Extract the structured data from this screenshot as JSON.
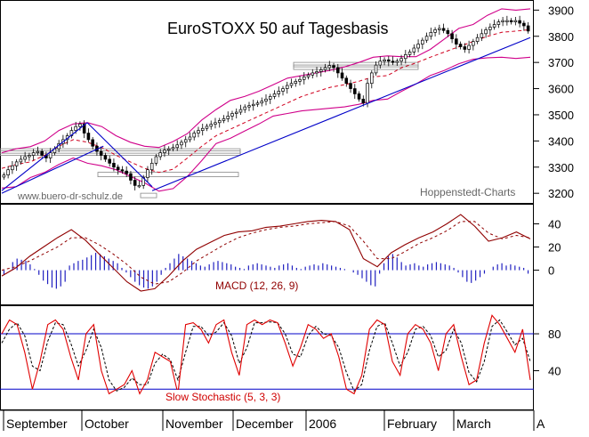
{
  "chart_data": [
    {
      "type": "candlestick",
      "title": "EuroSTOXX 50 auf Tagesbasis",
      "watermark_left": "www.buero-dr-schulz.de",
      "watermark_right": "Hoppenstedt-Charts",
      "y_ticks": [
        "3900",
        "3800",
        "3700",
        "3600",
        "3500",
        "3400",
        "3300",
        "3200"
      ],
      "ylim": [
        3170,
        3925
      ],
      "x_range": [
        0,
        130
      ],
      "closes": [
        3270,
        3290,
        3305,
        3320,
        3330,
        3340,
        3345,
        3355,
        3360,
        3345,
        3335,
        3355,
        3370,
        3390,
        3405,
        3420,
        3440,
        3455,
        3465,
        3430,
        3405,
        3380,
        3360,
        3345,
        3330,
        3315,
        3300,
        3290,
        3285,
        3275,
        3250,
        3230,
        3230,
        3260,
        3290,
        3315,
        3340,
        3355,
        3365,
        3370,
        3375,
        3385,
        3395,
        3405,
        3415,
        3430,
        3440,
        3448,
        3456,
        3464,
        3470,
        3478,
        3485,
        3495,
        3505,
        3510,
        3520,
        3530,
        3535,
        3540,
        3545,
        3552,
        3560,
        3570,
        3580,
        3590,
        3600,
        3612,
        3620,
        3628,
        3635,
        3645,
        3652,
        3660,
        3665,
        3672,
        3680,
        3688,
        3680,
        3660,
        3640,
        3620,
        3600,
        3580,
        3560,
        3545,
        3620,
        3660,
        3690,
        3705,
        3710,
        3705,
        3700,
        3705,
        3715,
        3730,
        3740,
        3755,
        3770,
        3785,
        3800,
        3815,
        3825,
        3830,
        3822,
        3810,
        3790,
        3770,
        3760,
        3750,
        3765,
        3780,
        3795,
        3810,
        3825,
        3835,
        3845,
        3855,
        3860,
        3860,
        3855,
        3860,
        3850,
        3840,
        3820
      ],
      "upper_bollinger": [
        3355,
        3370,
        3378,
        3400,
        3440,
        3465,
        3470,
        3455,
        3420,
        3395,
        3380,
        3375,
        3398,
        3428,
        3480,
        3520,
        3555,
        3570,
        3590,
        3615,
        3640,
        3650,
        3660,
        3670,
        3683,
        3700,
        3720,
        3725,
        3722,
        3722,
        3750,
        3790,
        3830,
        3845,
        3880,
        3905,
        3900,
        3905
      ],
      "lower_bollinger": [
        3220,
        3225,
        3260,
        3280,
        3310,
        3335,
        3315,
        3305,
        3290,
        3265,
        3240,
        3208,
        3218,
        3265,
        3325,
        3390,
        3410,
        3438,
        3465,
        3495,
        3505,
        3515,
        3520,
        3525,
        3530,
        3540,
        3555,
        3560,
        3590,
        3618,
        3650,
        3670,
        3695,
        3712,
        3718,
        3720,
        3715,
        3720
      ],
      "moving_average": [
        3295,
        3310,
        3320,
        3345,
        3380,
        3405,
        3395,
        3375,
        3345,
        3320,
        3295,
        3280,
        3292,
        3335,
        3380,
        3420,
        3445,
        3470,
        3495,
        3520,
        3545,
        3570,
        3588,
        3605,
        3615,
        3628,
        3645,
        3650,
        3680,
        3698,
        3720,
        3740,
        3760,
        3780,
        3800,
        3815,
        3820,
        3825
      ]
    },
    {
      "type": "line",
      "title": "MACD (12, 26, 9)",
      "y_ticks": [
        "40",
        "20",
        "0"
      ],
      "ylim": [
        -28,
        55
      ],
      "macd": [
        -5,
        2,
        12,
        20,
        28,
        35,
        26,
        14,
        2,
        -10,
        -18,
        -16,
        -5,
        8,
        18,
        24,
        30,
        33,
        34,
        37,
        38,
        40,
        42,
        43,
        42,
        35,
        10,
        3,
        15,
        22,
        28,
        33,
        40,
        48,
        38,
        25,
        28,
        33,
        27
      ],
      "signal": [
        0,
        3,
        8,
        14,
        20,
        28,
        28,
        22,
        14,
        5,
        -6,
        -12,
        -10,
        -2,
        8,
        15,
        22,
        28,
        32,
        35,
        37,
        38,
        40,
        41,
        42,
        38,
        25,
        10,
        10,
        16,
        23,
        28,
        34,
        42,
        42,
        32,
        27,
        30,
        28
      ],
      "histogram": [
        -4,
        0,
        7,
        10,
        9,
        8,
        5,
        1,
        -4,
        -9,
        -12,
        -15,
        -16,
        -14,
        -10,
        4,
        6,
        8,
        9,
        11,
        13,
        15,
        14,
        12,
        10,
        8,
        6,
        2,
        -2,
        -6,
        -10,
        -13,
        -15,
        -16,
        -14,
        -10,
        -4,
        2,
        6,
        10,
        14,
        12,
        10,
        8,
        6,
        4,
        3,
        5,
        7,
        8,
        7,
        6,
        5,
        3,
        2,
        1,
        4,
        5,
        6,
        5,
        4,
        3,
        2,
        4,
        5,
        6,
        4,
        2,
        1,
        3,
        4,
        5,
        4,
        6,
        5,
        4,
        3,
        2,
        1,
        0,
        -2,
        -4,
        -7,
        -10,
        -13,
        -14,
        -3,
        6,
        12,
        14,
        11,
        7,
        4,
        5,
        6,
        4,
        3,
        5,
        6,
        7,
        6,
        5,
        4,
        2,
        -2,
        -6,
        -10,
        -11,
        -9,
        -6,
        -3,
        0,
        3,
        5,
        6,
        4,
        5,
        4,
        3,
        2,
        -3
      ]
    },
    {
      "type": "line",
      "title": "Slow Stochastic (5, 3, 3)",
      "y_ticks": [
        "80",
        "40"
      ],
      "ylim": [
        0,
        108
      ],
      "levels": [
        80,
        20
      ],
      "k": [
        80,
        95,
        90,
        60,
        20,
        50,
        90,
        95,
        85,
        55,
        30,
        80,
        90,
        40,
        15,
        20,
        25,
        40,
        15,
        30,
        60,
        55,
        50,
        15,
        90,
        92,
        85,
        70,
        90,
        95,
        60,
        35,
        90,
        95,
        90,
        95,
        92,
        70,
        45,
        65,
        90,
        85,
        75,
        80,
        55,
        20,
        15,
        35,
        85,
        95,
        90,
        50,
        35,
        80,
        90,
        85,
        70,
        40,
        80,
        90,
        55,
        25,
        30,
        70,
        100,
        90,
        75,
        60,
        85,
        30
      ],
      "d": [
        70,
        85,
        92,
        78,
        45,
        40,
        72,
        92,
        90,
        70,
        45,
        62,
        85,
        65,
        30,
        18,
        22,
        32,
        25,
        25,
        48,
        58,
        52,
        30,
        60,
        88,
        88,
        78,
        82,
        92,
        78,
        48,
        65,
        92,
        92,
        93,
        92,
        80,
        58,
        55,
        78,
        88,
        80,
        78,
        65,
        38,
        18,
        25,
        62,
        88,
        92,
        70,
        45,
        60,
        85,
        88,
        78,
        55,
        62,
        85,
        70,
        38,
        28,
        50,
        88,
        95,
        82,
        68,
        75,
        50
      ]
    }
  ],
  "x_axis": {
    "labels": [
      "September",
      "October",
      "November",
      "December",
      "2006",
      "February",
      "March",
      "A"
    ]
  },
  "colors": {
    "bollinger": "#d0008a",
    "moving_average": "#d0001e",
    "trendline": "#0000c8",
    "macd_line": "#900000",
    "macd_label": "#900000",
    "histogram": "#2020c0",
    "stoch_k": "#e00000",
    "stoch_level": "#0000c8",
    "stoch_label": "#d00000",
    "title": "#000000"
  }
}
